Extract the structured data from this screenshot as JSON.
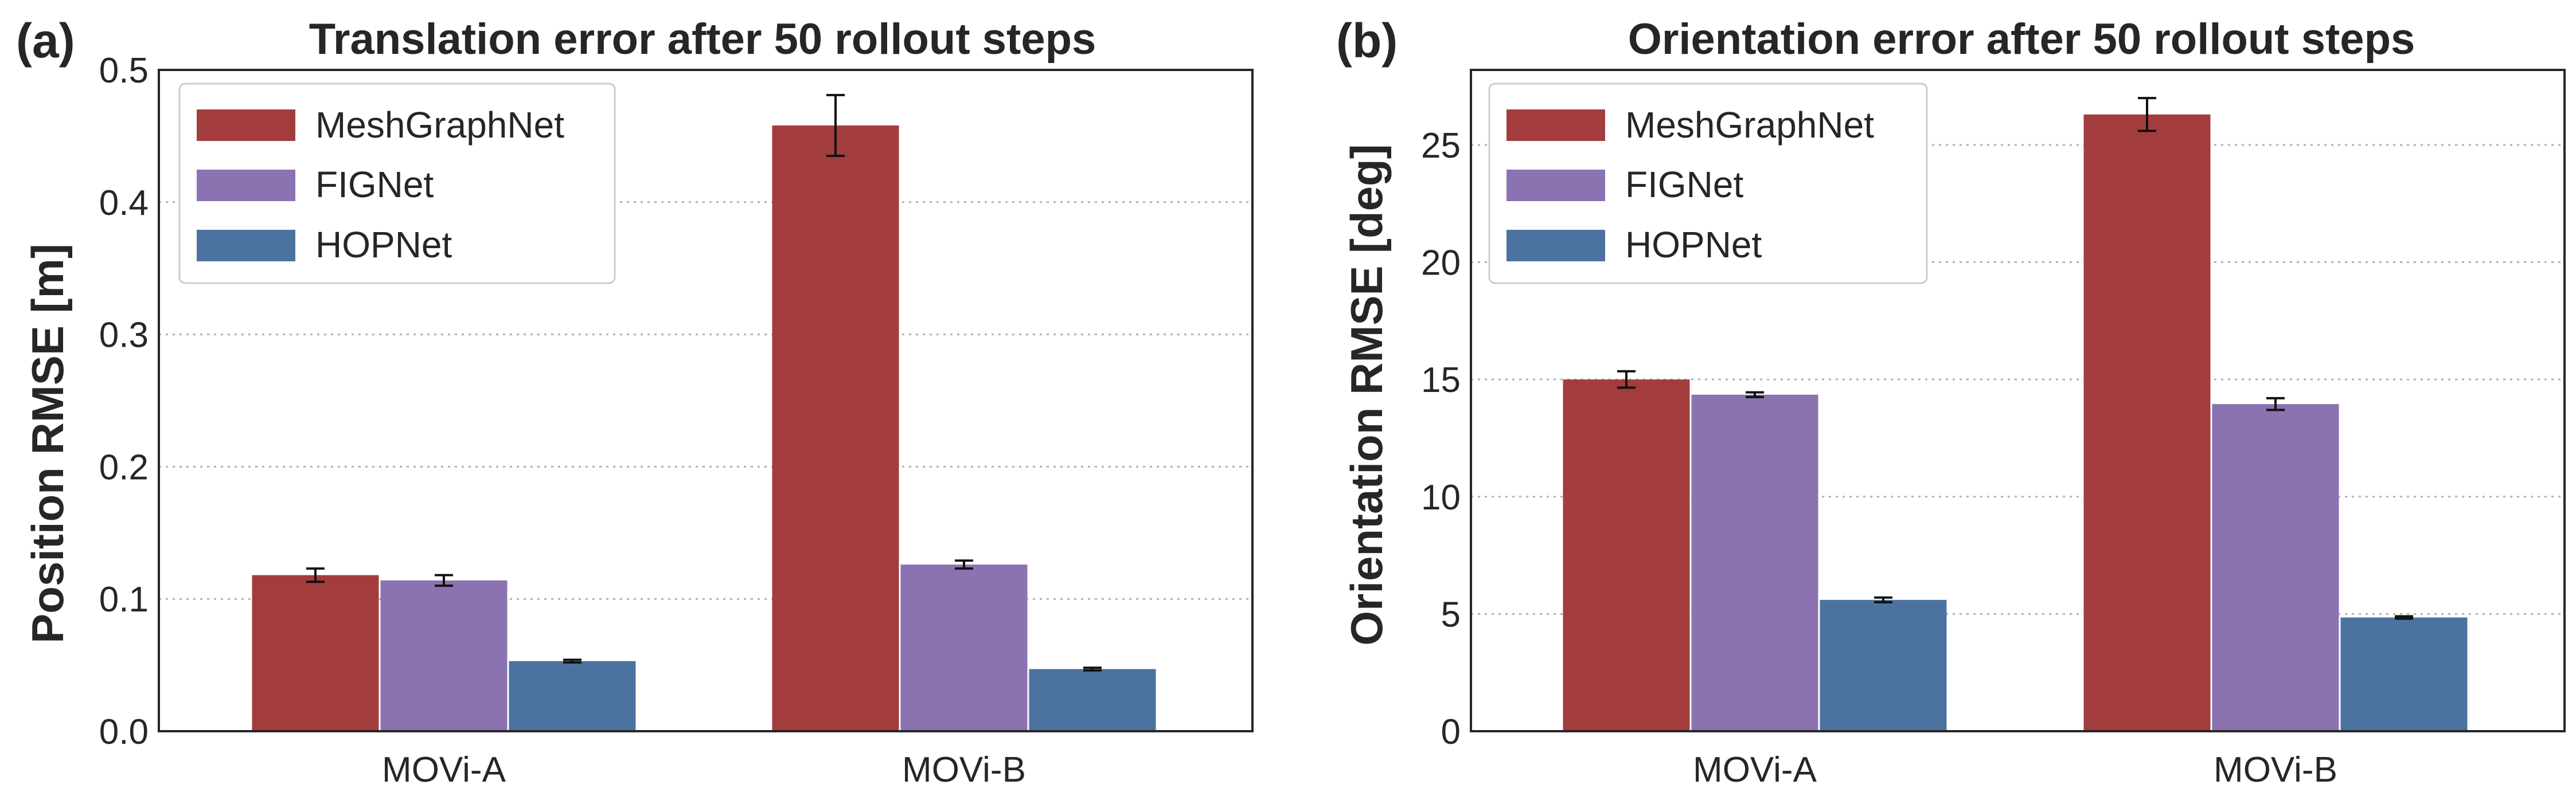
{
  "colors": {
    "MeshGraphNet": "#a33c3d",
    "FIGNet": "#8b73b1",
    "HOPNet": "#4c739f"
  },
  "chart_data": [
    {
      "type": "bar",
      "panel_label": "(a)",
      "title": "Translation error after 50 rollout steps",
      "xlabel": "",
      "ylabel": "Position RMSE [m]",
      "ylim": [
        0,
        0.5
      ],
      "yticks": [
        0.0,
        0.1,
        0.2,
        0.3,
        0.4,
        0.5
      ],
      "ytick_labels": [
        "0.0",
        "0.1",
        "0.2",
        "0.3",
        "0.4",
        "0.5"
      ],
      "grid": "horizontal dotted",
      "legend_position": "top-left",
      "categories": [
        "MOVi-A",
        "MOVi-B"
      ],
      "series": [
        {
          "name": "MeshGraphNet",
          "values": [
            0.118,
            0.458
          ],
          "errors": [
            0.005,
            0.023
          ]
        },
        {
          "name": "FIGNet",
          "values": [
            0.114,
            0.126
          ],
          "errors": [
            0.004,
            0.003
          ]
        },
        {
          "name": "HOPNet",
          "values": [
            0.053,
            0.047
          ],
          "errors": [
            0.001,
            0.001
          ]
        }
      ]
    },
    {
      "type": "bar",
      "panel_label": "(b)",
      "title": "Orientation error after 50 rollout steps",
      "xlabel": "",
      "ylabel": "Orientation RMSE [deg]",
      "ylim": [
        0,
        28.2
      ],
      "yticks": [
        0,
        5,
        10,
        15,
        20,
        25
      ],
      "ytick_labels": [
        "0",
        "5",
        "10",
        "15",
        "20",
        "25"
      ],
      "grid": "horizontal dotted",
      "legend_position": "top-left",
      "categories": [
        "MOVi-A",
        "MOVi-B"
      ],
      "series": [
        {
          "name": "MeshGraphNet",
          "values": [
            15.0,
            26.3
          ],
          "errors": [
            0.35,
            0.7
          ]
        },
        {
          "name": "FIGNet",
          "values": [
            14.35,
            13.95
          ],
          "errors": [
            0.1,
            0.25
          ]
        },
        {
          "name": "HOPNet",
          "values": [
            5.6,
            4.85
          ],
          "errors": [
            0.1,
            0.05
          ]
        }
      ]
    }
  ]
}
